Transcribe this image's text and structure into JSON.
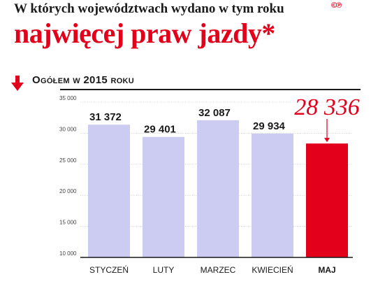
{
  "header": {
    "line1": "W których województwach wydano w tym roku",
    "line2": "najwięcej praw jazdy*",
    "badge": "©℗"
  },
  "subtitle": "Ogółem w 2015 roku",
  "colors": {
    "bar": "#ccccf2",
    "highlight": "#e2001a",
    "title_red": "#e2001a",
    "text": "#1a1a1a"
  },
  "chart_data": {
    "type": "bar",
    "title": "",
    "xlabel": "",
    "ylabel": "",
    "categories": [
      "STYCZEŃ",
      "LUTY",
      "MARZEC",
      "KWIECIEŃ",
      "MAJ"
    ],
    "values": [
      31372,
      29401,
      32087,
      29934,
      28336
    ],
    "value_labels": [
      "31 372",
      "29 401",
      "32 087",
      "29 934",
      "28 336"
    ],
    "highlight_index": 4,
    "ylim": [
      10000,
      35000
    ],
    "yticks": [
      10000,
      15000,
      20000,
      25000,
      30000,
      35000
    ],
    "ytick_labels": [
      "10 000",
      "15 000",
      "20 000",
      "25 000",
      "30 000",
      "35 000"
    ],
    "grid": true,
    "legend": "none"
  }
}
